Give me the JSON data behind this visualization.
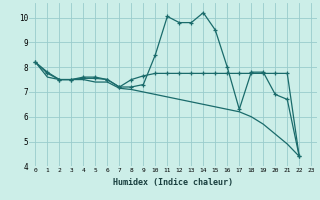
{
  "xlabel": "Humidex (Indice chaleur)",
  "bg_color": "#cceee8",
  "grid_color": "#99cccc",
  "line_color": "#1a6b6b",
  "xlim": [
    -0.5,
    23.5
  ],
  "ylim": [
    4,
    10.6
  ],
  "xticks": [
    0,
    1,
    2,
    3,
    4,
    5,
    6,
    7,
    8,
    9,
    10,
    11,
    12,
    13,
    14,
    15,
    16,
    17,
    18,
    19,
    20,
    21,
    22,
    23
  ],
  "yticks": [
    4,
    5,
    6,
    7,
    8,
    9,
    10
  ],
  "series1_x": [
    0,
    1,
    2,
    3,
    4,
    5,
    6,
    7,
    8,
    9,
    10,
    11,
    12,
    13,
    14,
    15,
    16,
    17,
    18,
    19,
    20,
    21,
    22
  ],
  "series1_y": [
    8.2,
    7.8,
    7.5,
    7.5,
    7.6,
    7.6,
    7.5,
    7.2,
    7.2,
    7.3,
    8.5,
    10.05,
    9.8,
    9.8,
    10.2,
    9.5,
    8.0,
    6.3,
    7.8,
    7.8,
    6.9,
    6.7,
    4.4
  ],
  "series2_x": [
    0,
    1,
    2,
    3,
    4,
    5,
    6,
    7,
    8,
    9,
    10,
    11,
    12,
    13,
    14,
    15,
    16,
    17,
    18,
    19,
    20,
    21,
    22
  ],
  "series2_y": [
    8.2,
    7.75,
    7.5,
    7.5,
    7.55,
    7.55,
    7.5,
    7.2,
    7.5,
    7.65,
    7.75,
    7.75,
    7.75,
    7.75,
    7.75,
    7.75,
    7.75,
    7.75,
    7.75,
    7.75,
    7.75,
    7.75,
    4.4
  ],
  "series3_x": [
    0,
    1,
    2,
    3,
    4,
    5,
    6,
    7,
    8,
    9,
    10,
    11,
    12,
    13,
    14,
    15,
    16,
    17,
    18,
    19,
    20,
    21,
    22
  ],
  "series3_y": [
    8.2,
    7.6,
    7.5,
    7.5,
    7.5,
    7.4,
    7.4,
    7.15,
    7.1,
    7.0,
    6.9,
    6.8,
    6.7,
    6.6,
    6.5,
    6.4,
    6.3,
    6.2,
    6.0,
    5.7,
    5.3,
    4.9,
    4.4
  ]
}
